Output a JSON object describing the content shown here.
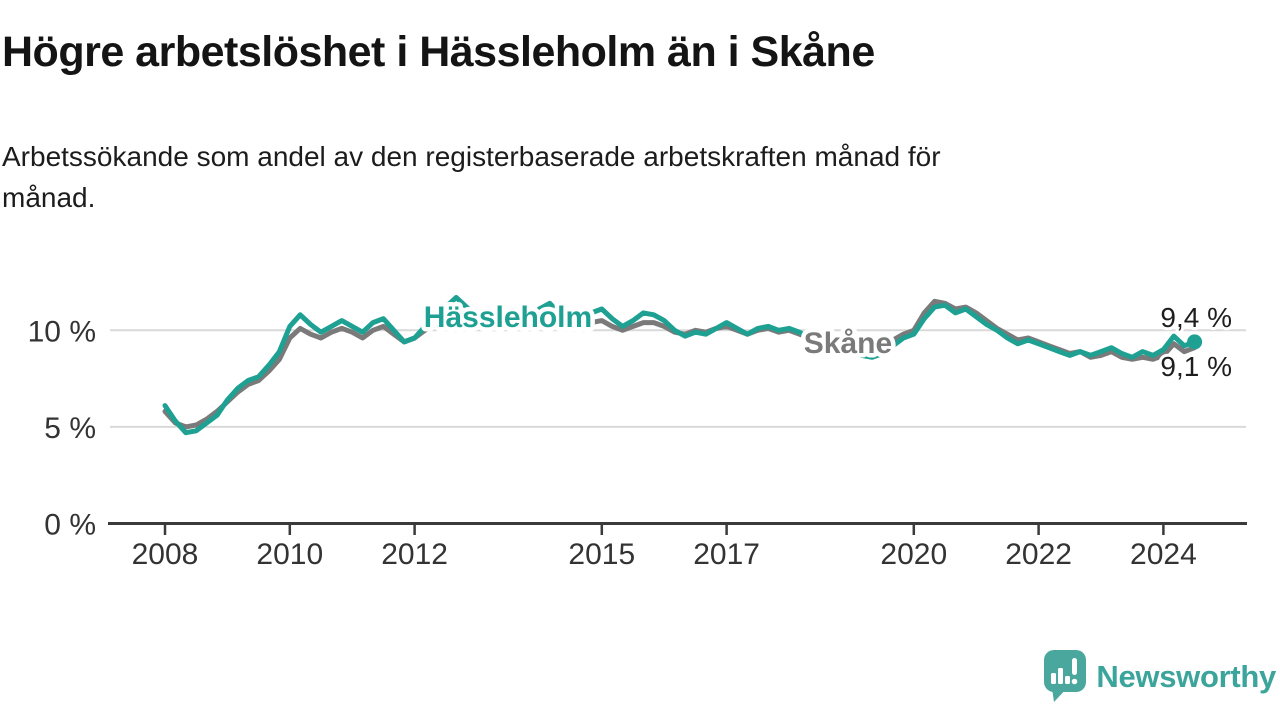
{
  "header": {
    "title": "Högre arbetslöshet i Hässleholm än i Skåne",
    "subtitle_lines": [
      "Arbetssökande som andel av den registerbaserade arbetskraften månad för",
      "månad."
    ]
  },
  "footer": {
    "brand": "Newsworthy",
    "logo_icon": "speech-bubble-bar-chart"
  },
  "colors": {
    "hassleholm_line": "#1ea093",
    "skane_line": "#7a7a7a",
    "gridline": "#d9d9d9",
    "axis": "#3a3a3a",
    "tick_label": "#333333",
    "end_label": "#1e1e1e",
    "brand_teal": "#49a79e"
  },
  "chart_data": {
    "type": "line",
    "title": "Högre arbetslöshet i Hässleholm än i Skåne",
    "subtitle": "Arbetssökande som andel av den registerbaserade arbetskraften månad för månad.",
    "unit": "%",
    "grid": "horizontal",
    "legend_position": "inline-labels",
    "x_start": 2008,
    "x_step_years": 0.166667,
    "xlim": [
      2007.9,
      2025.4
    ],
    "ylim": [
      0,
      13.5
    ],
    "x_ticks": [
      {
        "value": 2008,
        "label": "2008"
      },
      {
        "value": 2010,
        "label": "2010"
      },
      {
        "value": 2012,
        "label": "2012"
      },
      {
        "value": 2015,
        "label": "2015"
      },
      {
        "value": 2017,
        "label": "2017"
      },
      {
        "value": 2020,
        "label": "2020"
      },
      {
        "value": 2022,
        "label": "2022"
      },
      {
        "value": 2024,
        "label": "2024"
      }
    ],
    "y_ticks": [
      {
        "value": 0,
        "label": "0 %"
      },
      {
        "value": 5,
        "label": "5 %"
      },
      {
        "value": 10,
        "label": "10 %"
      }
    ],
    "series": [
      {
        "name": "Hässleholm",
        "color": "#1ea093",
        "end_label": "9,4 %",
        "end_dot": true,
        "values": [
          6.1,
          5.3,
          4.7,
          4.8,
          5.2,
          5.6,
          6.4,
          7.0,
          7.4,
          7.6,
          8.2,
          8.9,
          10.2,
          10.8,
          10.3,
          9.9,
          10.2,
          10.5,
          10.2,
          9.9,
          10.4,
          10.6,
          10.0,
          9.4,
          9.6,
          10.2,
          10.8,
          11.2,
          11.7,
          11.2,
          10.8,
          10.5,
          10.9,
          10.6,
          10.8,
          10.6,
          11.1,
          11.4,
          10.8,
          10.4,
          10.7,
          10.9,
          11.1,
          10.6,
          10.2,
          10.5,
          10.9,
          10.8,
          10.5,
          10.0,
          9.7,
          9.9,
          9.8,
          10.1,
          10.4,
          10.1,
          9.8,
          10.1,
          10.2,
          10.0,
          10.1,
          9.9,
          9.6,
          9.4,
          9.2,
          9.0,
          8.8,
          8.7,
          8.6,
          8.8,
          9.2,
          9.6,
          9.8,
          10.6,
          11.2,
          11.3,
          10.9,
          11.1,
          10.7,
          10.3,
          10.0,
          9.6,
          9.3,
          9.5,
          9.3,
          9.1,
          8.9,
          8.7,
          8.9,
          8.7,
          8.9,
          9.1,
          8.8,
          8.6,
          8.9,
          8.7,
          9.0,
          9.7,
          9.2,
          9.4
        ]
      },
      {
        "name": "Skåne",
        "color": "#7a7a7a",
        "end_label": "9,1 %",
        "end_dot": false,
        "values": [
          5.8,
          5.2,
          5.0,
          5.1,
          5.4,
          5.8,
          6.3,
          6.8,
          7.2,
          7.4,
          7.9,
          8.5,
          9.6,
          10.1,
          9.8,
          9.6,
          9.9,
          10.1,
          9.9,
          9.6,
          10.0,
          10.2,
          9.8,
          9.4,
          9.6,
          10.0,
          10.3,
          10.6,
          10.9,
          10.6,
          10.4,
          10.2,
          10.5,
          10.3,
          10.4,
          10.3,
          10.5,
          10.7,
          10.3,
          10.1,
          10.3,
          10.4,
          10.5,
          10.2,
          10.0,
          10.2,
          10.4,
          10.4,
          10.2,
          9.9,
          9.8,
          10.0,
          9.9,
          10.1,
          10.2,
          10.0,
          9.8,
          10.0,
          10.1,
          9.9,
          10.0,
          9.8,
          9.6,
          9.5,
          9.3,
          9.2,
          9.1,
          9.0,
          9.0,
          9.2,
          9.5,
          9.8,
          10.0,
          10.9,
          11.5,
          11.4,
          11.1,
          11.2,
          10.9,
          10.5,
          10.1,
          9.8,
          9.5,
          9.6,
          9.4,
          9.2,
          9.0,
          8.8,
          8.9,
          8.6,
          8.7,
          8.9,
          8.6,
          8.5,
          8.6,
          8.5,
          8.7,
          9.3,
          8.9,
          9.1
        ]
      }
    ]
  }
}
